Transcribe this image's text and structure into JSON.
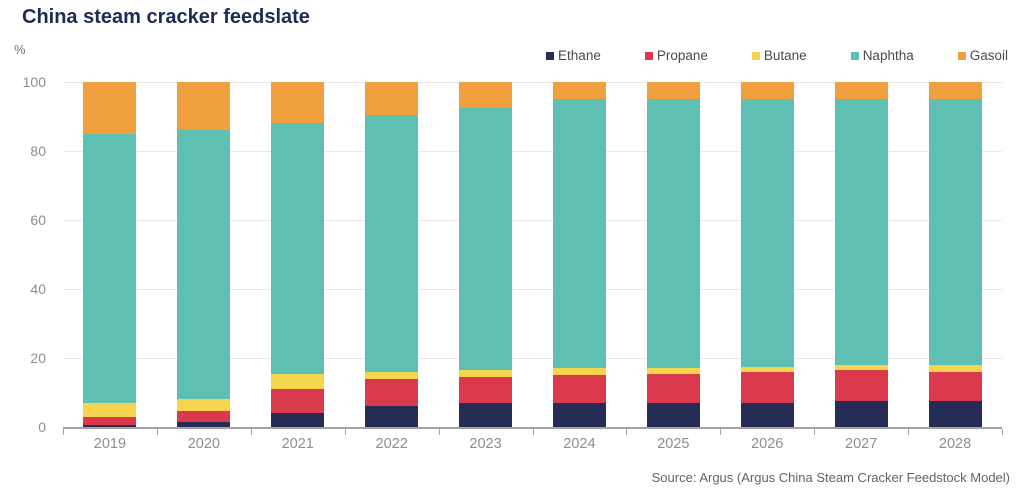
{
  "title": "China steam cracker feedslate",
  "source": "Source: Argus (Argus China Steam Cracker Feedstock Model)",
  "colors": {
    "title": "#1f2a56",
    "gridline": "#e9e9ed",
    "axis": "#a3a3a6",
    "tick_label": "#8e8e93",
    "legend_text": "#4b4b4f",
    "source_text": "#646468"
  },
  "chart_data": {
    "type": "bar",
    "stacked": true,
    "title": "China steam cracker feedslate",
    "xlabel": "",
    "ylabel": "%",
    "ylim": [
      0,
      100
    ],
    "yticks": [
      0,
      20,
      40,
      60,
      80,
      100
    ],
    "grid": true,
    "legend_position": "top-right",
    "categories": [
      "2019",
      "2020",
      "2021",
      "2022",
      "2023",
      "2024",
      "2025",
      "2026",
      "2027",
      "2028"
    ],
    "series": [
      {
        "name": "Ethane",
        "color": "#252c55",
        "values": [
          0.5,
          1.5,
          4.0,
          6.0,
          7.0,
          7.0,
          7.0,
          7.0,
          7.5,
          7.5
        ]
      },
      {
        "name": "Propane",
        "color": "#da3a4c",
        "values": [
          2.5,
          3.0,
          7.0,
          8.0,
          7.5,
          8.0,
          8.5,
          9.0,
          9.0,
          8.5
        ]
      },
      {
        "name": "Butane",
        "color": "#f6d54e",
        "values": [
          4.0,
          3.5,
          4.5,
          2.0,
          2.0,
          2.0,
          1.5,
          1.5,
          1.5,
          2.0
        ]
      },
      {
        "name": "Naphtha",
        "color": "#5ec0b2",
        "values": [
          78.0,
          78.0,
          72.5,
          74.5,
          76.0,
          78.0,
          78.0,
          77.5,
          77.0,
          77.0
        ]
      },
      {
        "name": "Gasoil",
        "color": "#f0a03f",
        "values": [
          15.0,
          14.0,
          12.0,
          9.5,
          7.5,
          5.0,
          5.0,
          5.0,
          5.0,
          5.0
        ]
      }
    ]
  }
}
